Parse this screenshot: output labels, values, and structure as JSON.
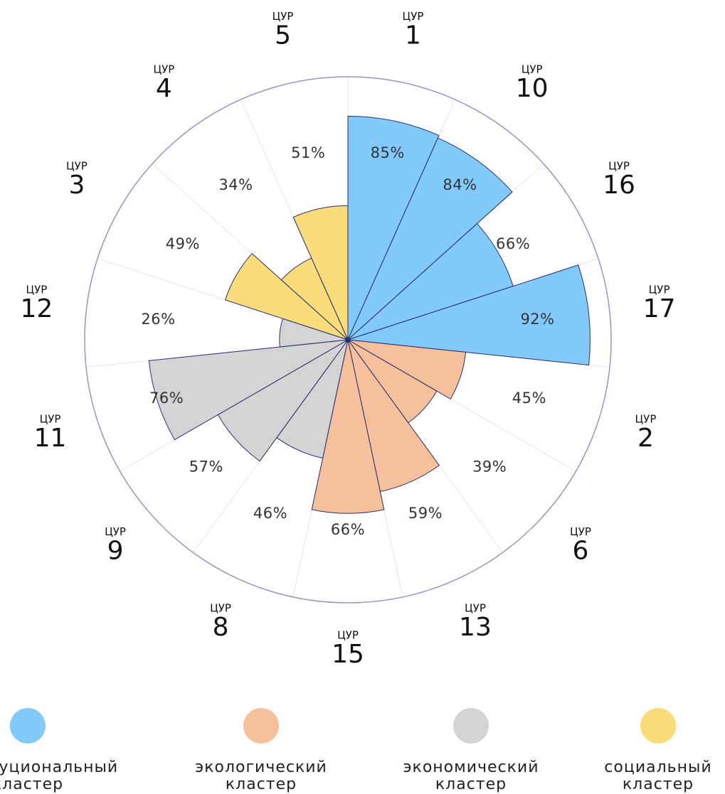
{
  "chart_data": {
    "type": "polar_area",
    "category_prefix": "ЦУР",
    "categories": [
      "1",
      "10",
      "16",
      "17",
      "2",
      "6",
      "13",
      "15",
      "8",
      "9",
      "11",
      "12",
      "3",
      "4",
      "5"
    ],
    "ylim": [
      0,
      100
    ],
    "series": [
      {
        "name": [
          "институциональный",
          "кластер"
        ],
        "color": "#82cafc",
        "values": [
          85,
          84,
          66,
          92,
          null,
          null,
          null,
          null,
          null,
          null,
          null,
          null,
          null,
          null,
          null
        ],
        "value_labels": [
          "85%",
          "84%",
          "66%",
          "92%",
          null,
          null,
          null,
          null,
          null,
          null,
          null,
          null,
          null,
          null,
          null
        ]
      },
      {
        "name": [
          "экологический",
          "кластер"
        ],
        "color": "#f7c09c",
        "values": [
          null,
          null,
          null,
          null,
          45,
          39,
          59,
          66,
          null,
          null,
          null,
          null,
          null,
          null,
          null
        ],
        "value_labels": [
          null,
          null,
          null,
          null,
          "45%",
          "39%",
          "59%",
          "66%",
          null,
          null,
          null,
          null,
          null,
          null,
          null
        ]
      },
      {
        "name": [
          "экономический",
          "кластер"
        ],
        "color": "#d4d4d4",
        "values": [
          null,
          null,
          null,
          null,
          null,
          null,
          null,
          null,
          46,
          57,
          76,
          26,
          null,
          null,
          null
        ],
        "value_labels": [
          null,
          null,
          null,
          null,
          null,
          null,
          null,
          null,
          "46%",
          "57%",
          "76%",
          "26%",
          null,
          null,
          null
        ]
      },
      {
        "name": [
          "социальный",
          "кластер"
        ],
        "color": "#fadd7a",
        "values": [
          null,
          null,
          null,
          null,
          null,
          null,
          null,
          null,
          null,
          null,
          null,
          null,
          49,
          34,
          51
        ],
        "value_labels": [
          null,
          null,
          null,
          null,
          null,
          null,
          null,
          null,
          null,
          null,
          null,
          null,
          "49%",
          "34%",
          "51%"
        ]
      }
    ]
  }
}
